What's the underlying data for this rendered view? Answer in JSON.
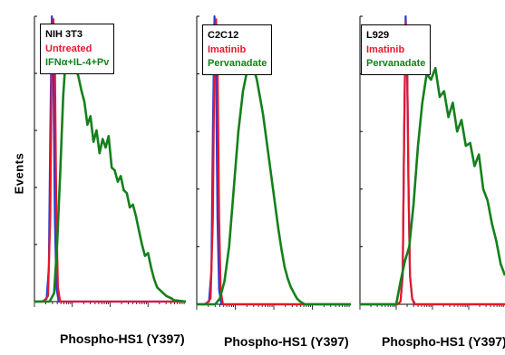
{
  "figure": {
    "ylabel": "Events",
    "colors": {
      "blue": "#2a3bd4",
      "red": "#e6172b",
      "green": "#14801c"
    }
  },
  "chart_data": [
    {
      "type": "line",
      "xlabel": "Phospho-HS1 (Y397)",
      "ylabel": "Events",
      "x_scale": "log",
      "xlim": [
        0,
        100
      ],
      "ylim": [
        0,
        100
      ],
      "grid": false,
      "legend_position": "top-left",
      "legend": [
        "NIH 3T3",
        "Untreated",
        "IFNα+IL-4+Pv"
      ],
      "series": [
        {
          "name": "Untreated",
          "color": "#2a3bd4",
          "x": [
            0,
            5,
            8,
            9.5,
            10.5,
            11.5,
            12.5,
            13.5,
            14.5,
            16,
            100
          ],
          "y": [
            0,
            0,
            1,
            12,
            60,
            100,
            80,
            30,
            5,
            0,
            0
          ]
        },
        {
          "name": "Untreated",
          "color": "#e6172b",
          "x": [
            0,
            6,
            9,
            10.5,
            11.5,
            12.5,
            13.5,
            14.5,
            15.5,
            17,
            100
          ],
          "y": [
            0,
            0,
            2,
            30,
            90,
            99,
            85,
            30,
            5,
            0,
            0
          ]
        },
        {
          "name": "IFNα+IL-4+Pv",
          "color": "#14801c",
          "x": [
            0,
            10,
            13,
            15,
            17,
            19,
            20.5,
            22,
            23.5,
            25,
            27,
            29,
            31,
            33,
            35,
            37,
            39,
            41,
            43,
            45,
            47,
            49,
            51,
            53,
            55,
            57,
            59,
            61,
            63,
            65,
            67,
            69,
            71,
            73,
            75,
            77,
            79,
            81,
            83,
            85,
            87,
            89,
            91,
            92,
            100
          ],
          "y": [
            0,
            0,
            3,
            20,
            45,
            72,
            84,
            85,
            83,
            86,
            82,
            79,
            74,
            70,
            62,
            65,
            56,
            60,
            52,
            57,
            54,
            58,
            47,
            46,
            42,
            44,
            39,
            38,
            33,
            34,
            30,
            25,
            20,
            16,
            17,
            12,
            8,
            5,
            4,
            3,
            2,
            1.5,
            1,
            0.5,
            0
          ]
        }
      ]
    },
    {
      "type": "line",
      "xlabel": "Phospho-HS1 (Y397)",
      "ylabel": "Events",
      "x_scale": "log",
      "xlim": [
        0,
        100
      ],
      "ylim": [
        0,
        100
      ],
      "grid": false,
      "legend_position": "top-left",
      "legend": [
        "C2C12",
        "Imatinib",
        "Pervanadate"
      ],
      "series": [
        {
          "name": "Imatinib",
          "color": "#2a3bd4",
          "x": [
            0,
            5,
            8,
            9.5,
            10.5,
            11.5,
            12.5,
            13.5,
            14.5,
            16,
            100
          ],
          "y": [
            0,
            0,
            1,
            12,
            60,
            100,
            80,
            30,
            5,
            0,
            0
          ]
        },
        {
          "name": "Imatinib",
          "color": "#e6172b",
          "x": [
            0,
            6,
            9,
            10.5,
            11.5,
            12.5,
            13.5,
            14.5,
            15.5,
            17,
            100
          ],
          "y": [
            0,
            0,
            2,
            30,
            90,
            99,
            85,
            30,
            5,
            0,
            0
          ]
        },
        {
          "name": "Pervanadate",
          "color": "#14801c",
          "x": [
            0,
            12,
            15,
            18,
            21,
            24,
            27,
            30,
            33,
            35,
            37,
            39,
            41,
            43,
            45,
            47,
            49,
            51,
            53,
            55,
            57,
            59,
            61,
            63,
            65,
            67,
            70,
            100
          ],
          "y": [
            0,
            0,
            2,
            8,
            20,
            40,
            60,
            74,
            82,
            84,
            82,
            78,
            72,
            66,
            58,
            50,
            42,
            34,
            26,
            19,
            13,
            9,
            6,
            4,
            2,
            1,
            0,
            0
          ]
        }
      ]
    },
    {
      "type": "line",
      "xlabel": "Phospho-HS1 (Y397)",
      "ylabel": "Events",
      "x_scale": "log",
      "xlim": [
        0,
        100
      ],
      "ylim": [
        0,
        100
      ],
      "grid": false,
      "legend_position": "top-left",
      "legend": [
        "L929",
        "Imatinib",
        "Pervanadate"
      ],
      "series": [
        {
          "name": "Imatinib",
          "color": "#2a3bd4",
          "x": [
            0,
            26,
            28,
            29.5,
            30.5,
            31.5,
            32.5,
            33.5,
            34.5,
            36,
            38,
            100
          ],
          "y": [
            0,
            0,
            1,
            10,
            60,
            100,
            85,
            40,
            10,
            2,
            0,
            0
          ]
        },
        {
          "name": "Imatinib",
          "color": "#e6172b",
          "x": [
            0,
            26,
            28,
            29.5,
            30.5,
            31.5,
            32.5,
            33.5,
            34.5,
            36,
            37.5,
            100
          ],
          "y": [
            0,
            0,
            1,
            12,
            60,
            98,
            85,
            40,
            10,
            2,
            0,
            0
          ]
        },
        {
          "name": "Pervanadate",
          "color": "#14801c",
          "x": [
            0,
            25,
            28,
            31,
            34,
            37,
            40,
            43,
            46,
            49,
            52,
            55,
            58,
            61,
            64,
            67,
            70,
            73,
            76,
            79,
            82,
            85,
            88,
            91,
            94,
            97,
            100
          ],
          "y": [
            0,
            0,
            8,
            15,
            20,
            35,
            55,
            70,
            80,
            78,
            82,
            72,
            74,
            65,
            70,
            60,
            64,
            55,
            56,
            48,
            52,
            40,
            36,
            28,
            22,
            14,
            10
          ]
        }
      ]
    }
  ]
}
